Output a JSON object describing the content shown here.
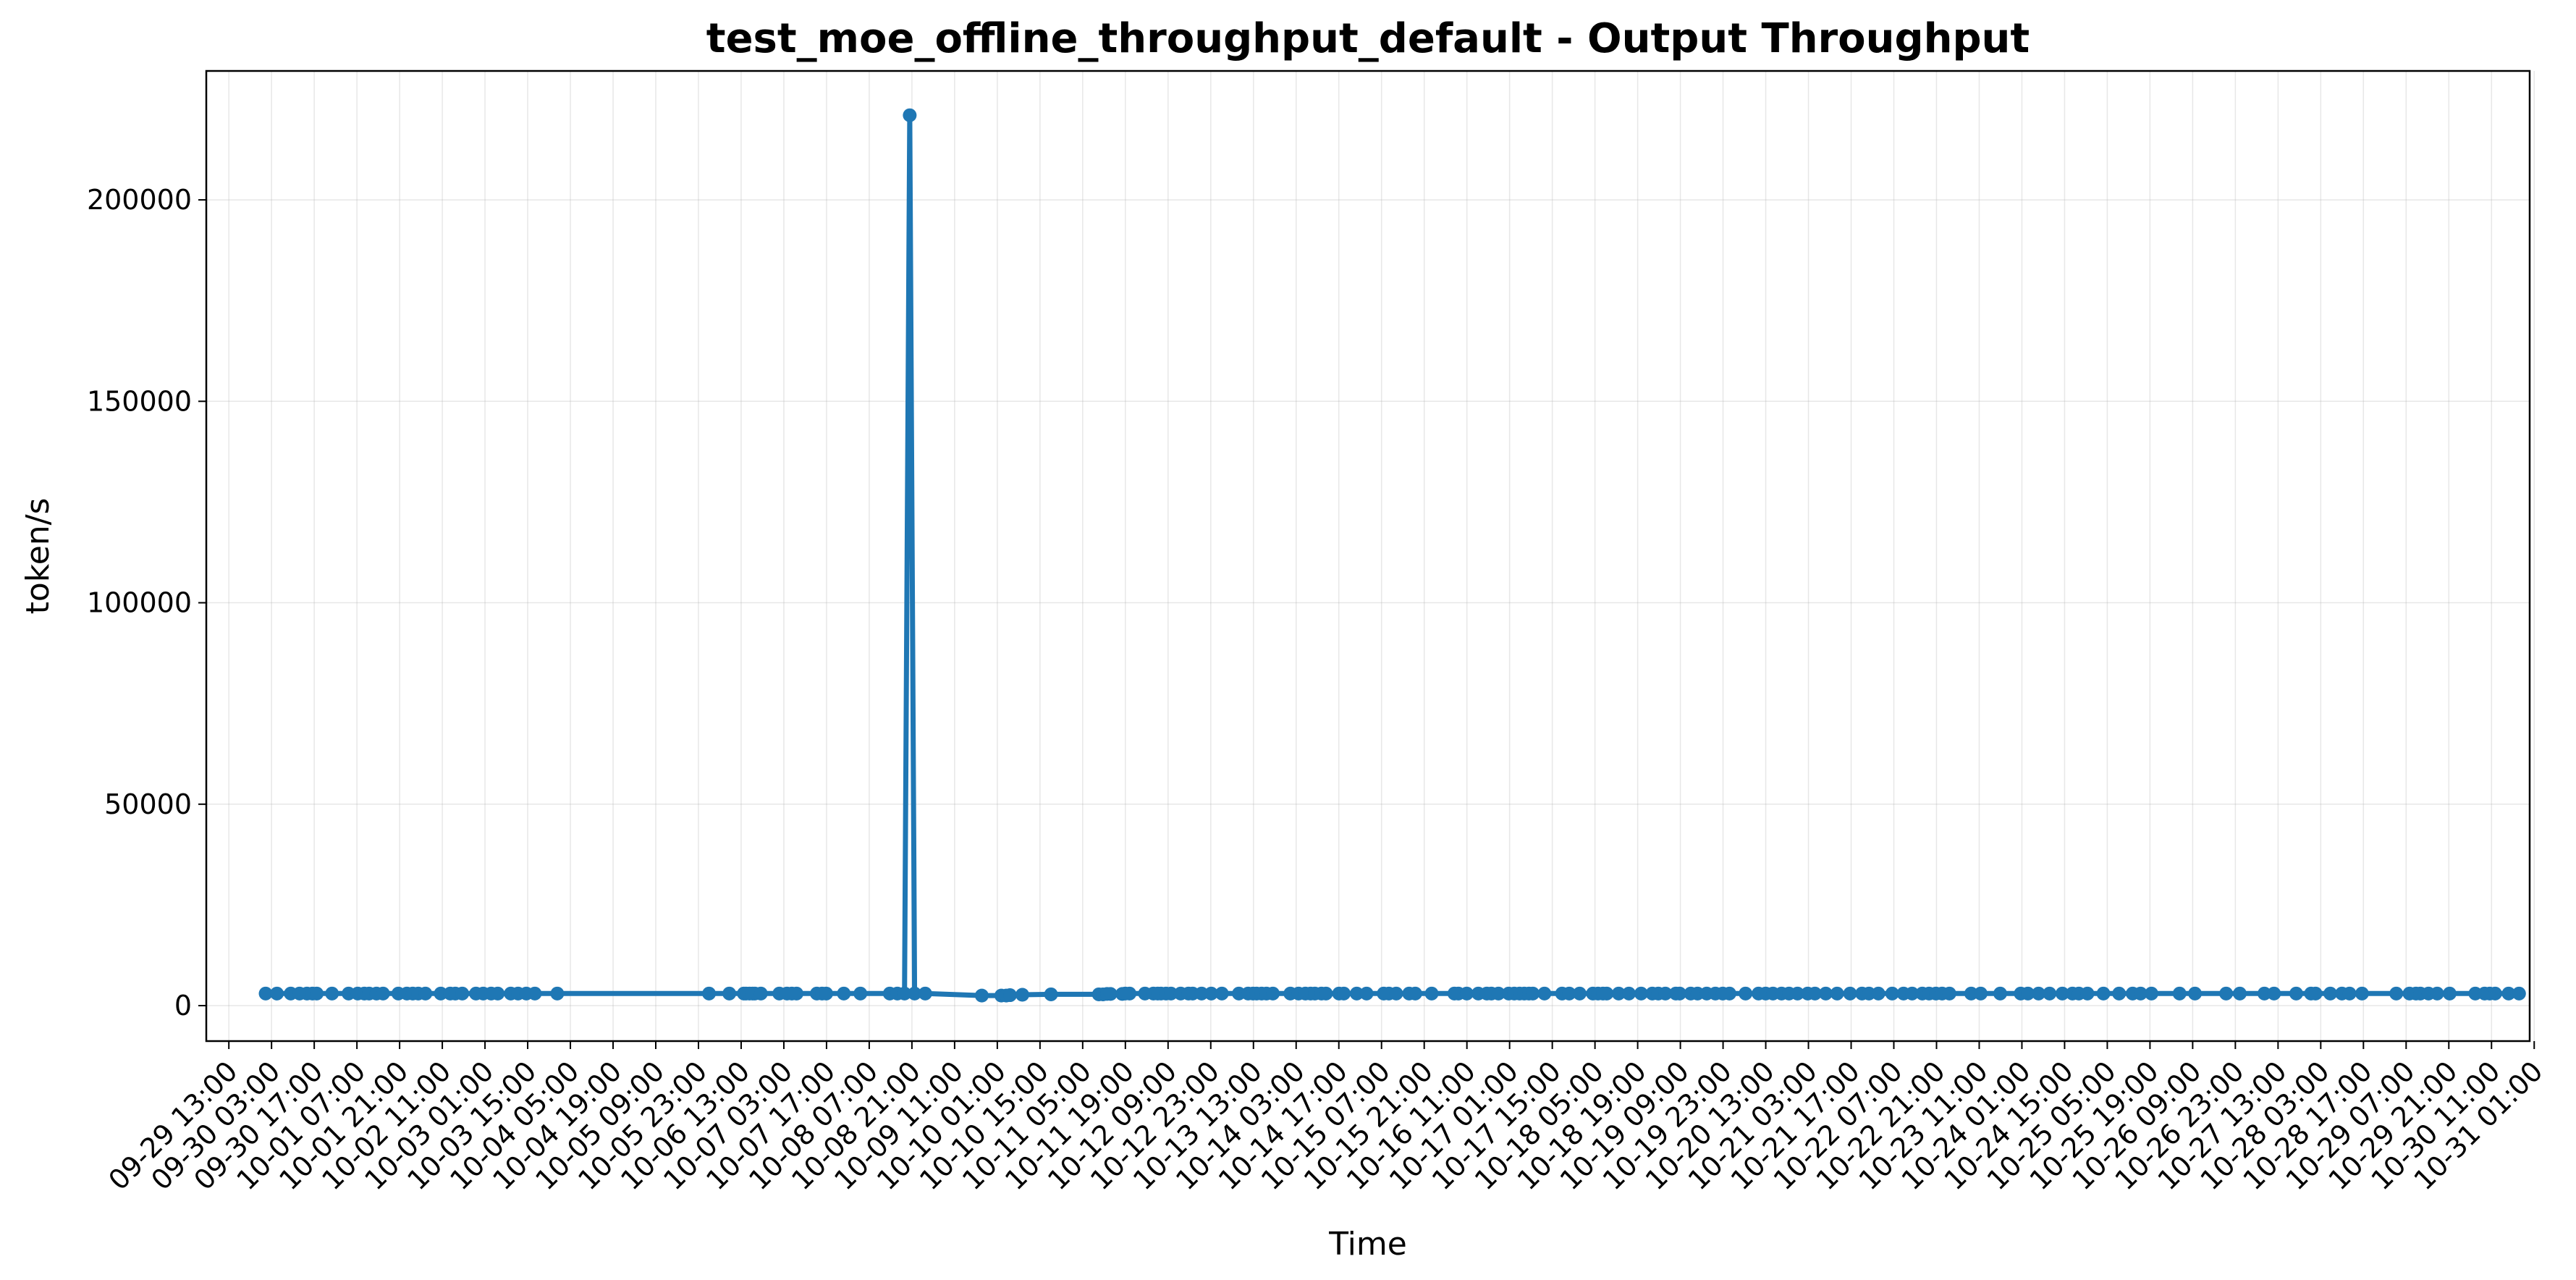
{
  "chart_data": {
    "type": "line",
    "title": "test_moe_offline_throughput_default - Output Throughput",
    "xlabel": "Time",
    "ylabel": "token/s",
    "ylim": [
      -8800,
      232000
    ],
    "xlim": [
      "09-29 05:36",
      "10-30 23:31"
    ],
    "grid": true,
    "x_tick_labels": [
      "09-29 13:00",
      "09-30 03:00",
      "09-30 17:00",
      "10-01 07:00",
      "10-01 21:00",
      "10-02 11:00",
      "10-03 01:00",
      "10-03 15:00",
      "10-04 05:00",
      "10-04 19:00",
      "10-05 09:00",
      "10-05 23:00",
      "10-06 13:00",
      "10-07 03:00",
      "10-07 17:00",
      "10-08 07:00",
      "10-08 21:00",
      "10-09 11:00",
      "10-10 01:00",
      "10-10 15:00",
      "10-11 05:00",
      "10-11 19:00",
      "10-12 09:00",
      "10-12 23:00",
      "10-13 13:00",
      "10-14 03:00",
      "10-14 17:00",
      "10-15 07:00",
      "10-15 21:00",
      "10-16 11:00",
      "10-17 01:00",
      "10-17 15:00",
      "10-18 05:00",
      "10-18 19:00",
      "10-19 09:00",
      "10-19 23:00",
      "10-20 13:00",
      "10-21 03:00",
      "10-21 17:00",
      "10-22 07:00",
      "10-22 21:00",
      "10-23 11:00",
      "10-24 01:00",
      "10-24 15:00",
      "10-25 05:00",
      "10-25 19:00",
      "10-26 09:00",
      "10-26 23:00",
      "10-27 13:00",
      "10-28 03:00",
      "10-28 17:00",
      "10-29 07:00",
      "10-29 21:00",
      "10-30 11:00",
      "10-31 01:00"
    ],
    "y_ticks": [
      0,
      50000,
      100000,
      150000,
      200000
    ],
    "y_tick_labels": [
      "0",
      "50000",
      "100000",
      "150000",
      "200000"
    ],
    "line_color": "#1f77b4",
    "series": [
      {
        "x": [
          "09-30 01:04",
          "09-30 04:46",
          "09-30 09:18",
          "09-30 12:11",
          "09-30 14:37",
          "09-30 16:25",
          "09-30 17:49",
          "09-30 22:50",
          "10-01 04:16",
          "10-01 07:16",
          "10-01 09:26",
          "10-01 11:00",
          "10-01 13:25",
          "10-01 15:34",
          "10-01 20:35",
          "10-01 23:23",
          "10-02 01:18",
          "10-02 03:07",
          "10-02 05:28",
          "10-02 10:29",
          "10-02 13:36",
          "10-02 15:16",
          "10-02 17:33",
          "10-02 22:02",
          "10-03 00:25",
          "10-03 03:01",
          "10-03 05:11",
          "10-03 09:27",
          "10-03 11:51",
          "10-03 14:33",
          "10-03 17:21",
          "10-04 00:42",
          "10-06 02:28",
          "10-06 09:07",
          "10-06 13:53",
          "10-06 14:36",
          "10-06 15:44",
          "10-06 16:46",
          "10-06 17:29",
          "10-06 19:28",
          "10-07 01:31",
          "10-07 04:02",
          "10-07 05:37",
          "10-07 07:10",
          "10-07 13:49",
          "10-07 15:32",
          "10-07 16:54",
          "10-07 22:40",
          "10-08 04:06",
          "10-08 13:44",
          "10-08 16:14",
          "10-08 18:35",
          "10-08 20:17",
          "10-08 21:53",
          "10-09 01:22"
        ],
        "y": [
          3000,
          3000,
          3000,
          3000,
          3000,
          3000,
          3000,
          3000,
          3000,
          3000,
          3000,
          3000,
          3000,
          3000,
          3000,
          3000,
          3000,
          3000,
          3000,
          3000,
          3000,
          3000,
          3000,
          3000,
          3000,
          3000,
          3000,
          3000,
          3000,
          3000,
          3000,
          3000,
          3000,
          3000,
          3000,
          3000,
          3000,
          3000,
          3000,
          3000,
          3000,
          3000,
          3000,
          3000,
          3000,
          3000,
          3000,
          3000,
          3000,
          3000,
          3000,
          3000,
          221000,
          3000,
          3000
        ]
      },
      {
        "x": [
          "10-09 19:55",
          "10-10 02:19",
          "10-10 03:56",
          "10-10 05:11",
          "10-10 09:13",
          "10-10 18:37",
          "10-11 10:18",
          "10-11 11:40",
          "10-11 12:59",
          "10-11 14:07",
          "10-11 17:59",
          "10-11 18:58",
          "10-11 20:22",
          "10-12 01:25",
          "10-12 04:12",
          "10-12 05:37",
          "10-12 06:40",
          "10-12 08:20",
          "10-12 09:57",
          "10-12 13:08",
          "10-12 15:42",
          "10-12 17:04",
          "10-12 20:00",
          "10-12 23:10",
          "10-13 02:39",
          "10-13 08:13",
          "10-13 11:15",
          "10-13 12:51",
          "10-13 14:02",
          "10-13 15:41",
          "10-13 17:16",
          "10-13 19:22",
          "10-14 01:06",
          "10-14 03:48",
          "10-14 06:02",
          "10-14 07:44",
          "10-14 09:09",
          "10-14 11:18",
          "10-14 12:47",
          "10-14 17:04",
          "10-14 18:38",
          "10-14 22:52",
          "10-15 02:06",
          "10-15 07:43",
          "10-15 09:25",
          "10-15 11:49",
          "10-15 16:03",
          "10-15 18:04",
          "10-15 23:27",
          "10-16 06:53",
          "10-16 08:13",
          "10-16 10:57",
          "10-16 14:44",
          "10-16 17:32",
          "10-16 19:01",
          "10-16 21:21",
          "10-17 00:42",
          "10-17 02:32",
          "10-17 04:16",
          "10-17 05:49",
          "10-17 07:21",
          "10-17 08:37",
          "10-17 12:26",
          "10-17 18:12",
          "10-17 20:33",
          "10-17 23:58",
          "10-18 04:19",
          "10-18 06:00",
          "10-18 07:37",
          "10-18 08:51",
          "10-18 12:46",
          "10-18 16:08",
          "10-18 20:08",
          "10-18 23:48",
          "10-19 01:46",
          "10-19 04:05",
          "10-19 07:31",
          "10-19 08:46",
          "10-19 12:24",
          "10-19 14:38",
          "10-19 17:38",
          "10-19 20:29",
          "10-19 22:54",
          "10-20 01:06",
          "10-20 06:22",
          "10-20 10:38",
          "10-20 12:58",
          "10-20 15:22",
          "10-20 18:11",
          "10-20 20:38",
          "10-20 23:25",
          "10-21 02:46",
          "10-21 05:08",
          "10-21 08:41",
          "10-21 12:24",
          "10-21 16:39",
          "10-21 20:34",
          "10-21 22:51",
          "10-22 01:56",
          "10-22 06:28",
          "10-22 10:11",
          "10-22 13:00",
          "10-22 16:21",
          "10-22 18:34",
          "10-22 20:48",
          "10-22 22:50",
          "10-23 01:14",
          "10-23 08:22",
          "10-23 11:29",
          "10-23 17:53",
          "10-24 00:37",
          "10-24 02:58",
          "10-24 06:28",
          "10-24 10:04",
          "10-24 14:16",
          "10-24 17:35",
          "10-24 19:41",
          "10-24 22:30",
          "10-25 03:44"
        ],
        "y": [
          2500,
          2500,
          2500,
          2600,
          2700,
          2800,
          2800,
          2800,
          2900,
          2900,
          2900,
          3000,
          3000,
          3000,
          3000,
          3000,
          3000,
          3000,
          3000,
          3000,
          3000,
          3000,
          3000,
          3000,
          3000,
          3000,
          3000,
          3000,
          3000,
          3000,
          3000,
          3000,
          3000,
          3000,
          3000,
          3000,
          3000,
          3000,
          3000,
          3000,
          3000,
          3000,
          3000,
          3000,
          3000,
          3000,
          3000,
          3000,
          3000,
          3000,
          3000,
          3000,
          3000,
          3000,
          3000,
          3000,
          3000,
          3000,
          3000,
          3000,
          3000,
          3000,
          3000,
          3000,
          3000,
          3000,
          3000,
          3000,
          3000,
          3000,
          3000,
          3000,
          3000,
          3000,
          3000,
          3000,
          3000,
          3000,
          3000,
          3000,
          3000,
          3000,
          3000,
          3000,
          3000,
          3000,
          3000,
          3000,
          3000,
          3000,
          3000,
          3000,
          3000,
          3000,
          3000,
          3000,
          3000,
          3000,
          3000,
          3000,
          3000,
          3000,
          3000,
          3000,
          3000,
          3000,
          3000,
          3000,
          3000,
          3000,
          3000,
          3000,
          3000,
          3000,
          3000,
          3000,
          3000,
          3000,
          3000
        ]
      },
      {
        "x": [
          "10-25 08:52",
          "10-25 13:19",
          "10-25 15:55",
          "10-25 19:29",
          "10-26 04:42",
          "10-26 09:45",
          "10-26 19:58",
          "10-27 00:27",
          "10-27 08:31",
          "10-27 11:41",
          "10-27 18:57",
          "10-27 23:48",
          "10-28 01:18",
          "10-28 06:08",
          "10-28 09:57",
          "10-28 12:27",
          "10-28 16:32",
          "10-29 03:46",
          "10-29 08:06",
          "10-29 10:14",
          "10-29 11:40",
          "10-29 14:21",
          "10-29 17:11",
          "10-29 21:16",
          "10-30 05:41",
          "10-30 08:44",
          "10-30 10:25",
          "10-30 12:12",
          "10-30 16:37",
          "10-30 20:02"
        ],
        "y": [
          3000,
          3000,
          3000,
          3000,
          3000,
          3000,
          3000,
          3000,
          3000,
          3000,
          3000,
          3000,
          3000,
          3000,
          3000,
          3000,
          3000,
          3000,
          3000,
          3000,
          3000,
          3000,
          3000,
          3000,
          3000,
          3000,
          3000,
          3000,
          3000,
          3000
        ]
      }
    ]
  }
}
